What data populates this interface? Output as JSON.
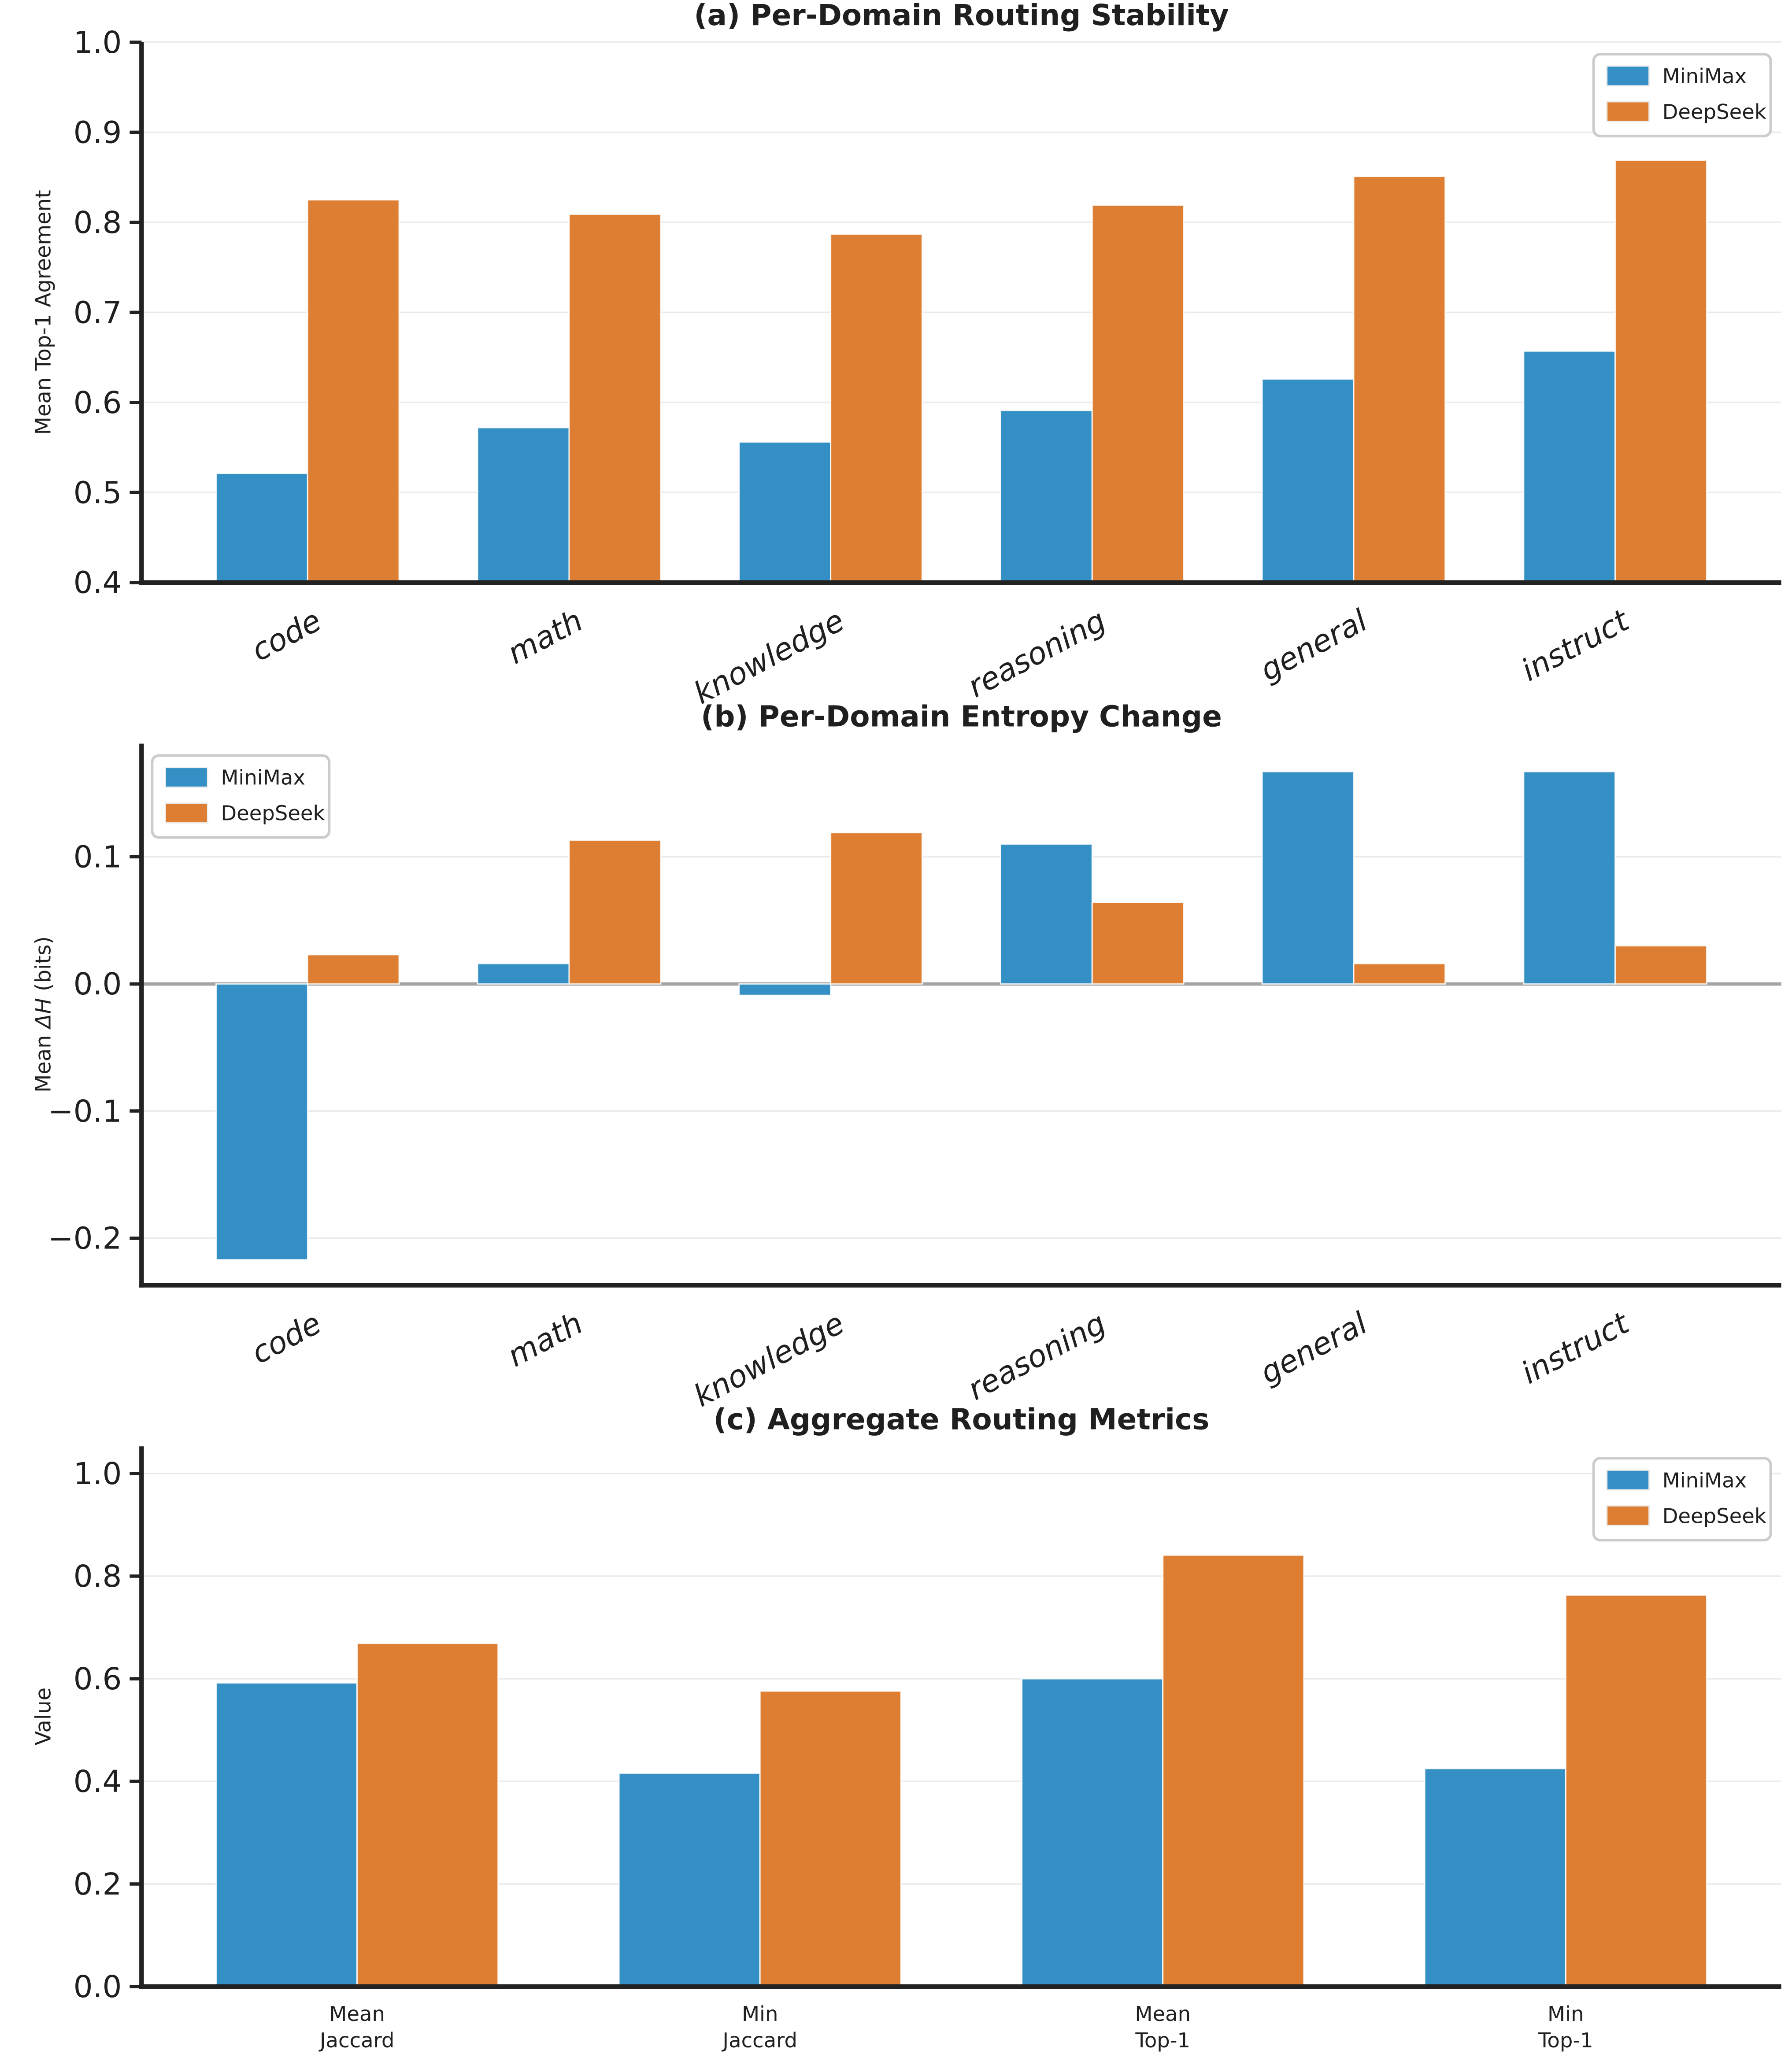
{
  "figure": {
    "background": "#ffffff"
  },
  "colors": {
    "minimax": "#348FC4",
    "deepseek": "#DD7E32",
    "grid": "#EBEBEB",
    "spine": "#222222",
    "zero_line": "#A3A3A3",
    "text": "#1F1F1F",
    "legend_border": "#CCCCCC",
    "legend_bg": "#FFFFFF"
  },
  "legend": {
    "labels": [
      "MiniMax",
      "DeepSeek"
    ]
  },
  "chart_data": [
    {
      "id": "a",
      "type": "bar",
      "title": "(a) Per-Domain Routing Stability",
      "ylabel": "Mean Top-1 Agreement",
      "categories": [
        "code",
        "math",
        "knowledge",
        "reasoning",
        "general",
        "instruct"
      ],
      "series": [
        {
          "name": "MiniMax",
          "values": [
            0.521,
            0.572,
            0.556,
            0.591,
            0.626,
            0.657
          ]
        },
        {
          "name": "DeepSeek",
          "values": [
            0.825,
            0.809,
            0.787,
            0.819,
            0.851,
            0.869
          ]
        }
      ],
      "ylim": [
        0.4,
        1.0
      ],
      "yticks": [
        0.4,
        0.5,
        0.6,
        0.7,
        0.8,
        0.9,
        1.0
      ],
      "grid": true,
      "legend_pos": "top-right",
      "xtick_style": "rotated-italic",
      "zero_line": false
    },
    {
      "id": "b",
      "type": "bar",
      "title": "(b) Per-Domain Entropy Change",
      "ylabel": "Mean ΔH (bits)",
      "ylabel_italic_sub": "ΔH",
      "categories": [
        "code",
        "math",
        "knowledge",
        "reasoning",
        "general",
        "instruct"
      ],
      "series": [
        {
          "name": "MiniMax",
          "values": [
            -0.217,
            0.016,
            -0.009,
            0.11,
            0.167,
            0.167
          ]
        },
        {
          "name": "DeepSeek",
          "values": [
            0.023,
            0.113,
            0.119,
            0.064,
            0.016,
            0.03
          ]
        }
      ],
      "ylim": [
        -0.237,
        0.189
      ],
      "yticks": [
        -0.2,
        -0.1,
        0.0,
        0.1
      ],
      "grid": true,
      "legend_pos": "top-left",
      "xtick_style": "rotated-italic",
      "zero_line": true
    },
    {
      "id": "c",
      "type": "bar",
      "title": "(c) Aggregate Routing Metrics",
      "ylabel": "Value",
      "categories": [
        "Mean\nJaccard",
        "Min\nJaccard",
        "Mean\nTop-1",
        "Min\nTop-1"
      ],
      "series": [
        {
          "name": "MiniMax",
          "values": [
            0.592,
            0.416,
            0.6,
            0.425
          ]
        },
        {
          "name": "DeepSeek",
          "values": [
            0.669,
            0.576,
            0.841,
            0.763
          ]
        }
      ],
      "ylim": [
        0.0,
        1.053
      ],
      "yticks": [
        0.0,
        0.2,
        0.4,
        0.6,
        0.8,
        1.0
      ],
      "grid": true,
      "legend_pos": "top-right",
      "xtick_style": "horizontal-multiline",
      "zero_line": false
    }
  ]
}
